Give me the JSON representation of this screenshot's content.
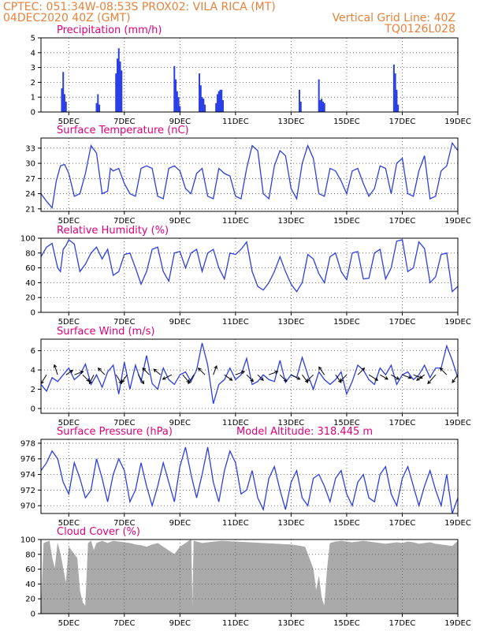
{
  "header": {
    "line1_left": "CPTEC:   051:34W-08:53S   PROX02: VILA RICA (MT)",
    "line2_left": "04DEC2020 40Z (GMT)",
    "line2_right": "Vertical Grid Line: 40Z",
    "line3_right": "TQ0126L028"
  },
  "x_ticks": [
    "5DEC",
    "7DEC",
    "9DEC",
    "11DEC",
    "13DEC",
    "15DEC",
    "17DEC",
    "19DEC"
  ],
  "x_range": [
    4,
    19
  ],
  "colors": {
    "header": "#e8823a",
    "title": "#e0007a",
    "line": "#2b3fe6",
    "cloud": "#aaaaaa",
    "arrow": "#000000"
  },
  "chart_data": [
    {
      "id": "precip",
      "type": "bar",
      "title": "Precipitation (mm/h)",
      "ylim": [
        0,
        5
      ],
      "yticks": [
        0,
        1,
        2,
        3,
        4,
        5
      ],
      "x": [
        4.75,
        4.8,
        4.85,
        4.9,
        6.0,
        6.05,
        6.1,
        6.7,
        6.75,
        6.8,
        6.85,
        6.9,
        8.8,
        8.85,
        8.9,
        8.95,
        9.0,
        9.7,
        9.75,
        9.8,
        9.85,
        9.9,
        10.3,
        10.35,
        10.4,
        10.45,
        10.5,
        10.55,
        13.3,
        13.35,
        14.0,
        14.05,
        14.1,
        14.15,
        14.2,
        16.7,
        16.75,
        16.8,
        16.85
      ],
      "values": [
        1.6,
        2.7,
        1.2,
        0.7,
        0.6,
        1.2,
        0.5,
        2.6,
        3.6,
        4.3,
        3.4,
        2.8,
        3.1,
        2.2,
        1.4,
        1.0,
        0.4,
        2.6,
        1.8,
        1.0,
        0.9,
        0.5,
        0.6,
        1.2,
        1.4,
        1.5,
        1.5,
        0.8,
        1.5,
        0.7,
        2.2,
        0.8,
        0.9,
        0.7,
        0.6,
        3.2,
        2.6,
        1.5,
        0.5
      ]
    },
    {
      "id": "temp",
      "type": "line",
      "title": "Surface Temperature (nC)",
      "ylim": [
        20.5,
        35
      ],
      "yticks": [
        21,
        24,
        27,
        30,
        33
      ],
      "x": [
        4.0,
        4.2,
        4.4,
        4.55,
        4.7,
        4.85,
        5.0,
        5.2,
        5.4,
        5.6,
        5.8,
        6.0,
        6.2,
        6.4,
        6.5,
        6.6,
        6.8,
        7.0,
        7.2,
        7.4,
        7.6,
        7.8,
        8.0,
        8.2,
        8.4,
        8.6,
        8.8,
        9.0,
        9.2,
        9.4,
        9.6,
        9.8,
        10.0,
        10.2,
        10.4,
        10.6,
        10.8,
        11.0,
        11.2,
        11.4,
        11.6,
        11.8,
        12.0,
        12.2,
        12.4,
        12.6,
        12.8,
        13.0,
        13.2,
        13.4,
        13.6,
        13.8,
        14.0,
        14.2,
        14.4,
        14.6,
        14.8,
        15.0,
        15.2,
        15.4,
        15.6,
        15.8,
        16.0,
        16.2,
        16.4,
        16.6,
        16.8,
        17.0,
        17.2,
        17.4,
        17.6,
        17.8,
        18.0,
        18.2,
        18.4,
        18.6,
        18.8,
        19.0
      ],
      "values": [
        24.0,
        22.5,
        21.2,
        26.5,
        29.5,
        29.8,
        28.0,
        23.5,
        24.0,
        28.0,
        33.5,
        32.0,
        24.0,
        24.5,
        29.0,
        28.5,
        29.0,
        26.0,
        24.0,
        23.5,
        29.0,
        29.5,
        29.0,
        23.5,
        23.0,
        29.0,
        29.5,
        28.5,
        25.0,
        24.0,
        28.0,
        29.0,
        23.5,
        23.0,
        29.0,
        28.0,
        27.5,
        23.5,
        23.0,
        29.0,
        33.5,
        32.5,
        24.0,
        23.0,
        29.5,
        32.5,
        31.5,
        25.0,
        23.0,
        30.0,
        33.5,
        31.0,
        24.0,
        23.5,
        29.0,
        28.5,
        26.5,
        24.0,
        28.5,
        29.0,
        26.0,
        23.5,
        25.0,
        29.5,
        29.0,
        24.0,
        30.0,
        31.0,
        24.0,
        23.5,
        28.5,
        31.5,
        23.0,
        23.5,
        28.5,
        29.5,
        34.0,
        32.5
      ]
    },
    {
      "id": "rh",
      "type": "line",
      "title": "Relative Humidity (%)",
      "ylim": [
        0,
        100
      ],
      "yticks": [
        0,
        20,
        40,
        60,
        80,
        100
      ],
      "x": [
        4.0,
        4.2,
        4.4,
        4.6,
        4.7,
        4.8,
        4.9,
        5.0,
        5.2,
        5.4,
        5.6,
        5.8,
        6.0,
        6.2,
        6.4,
        6.6,
        6.8,
        7.0,
        7.2,
        7.4,
        7.6,
        7.8,
        8.0,
        8.2,
        8.4,
        8.6,
        8.8,
        9.0,
        9.2,
        9.4,
        9.6,
        9.8,
        10.0,
        10.2,
        10.4,
        10.6,
        10.8,
        11.0,
        11.2,
        11.4,
        11.6,
        11.8,
        12.0,
        12.2,
        12.4,
        12.6,
        12.8,
        13.0,
        13.2,
        13.4,
        13.6,
        13.8,
        14.0,
        14.2,
        14.4,
        14.6,
        14.8,
        15.0,
        15.2,
        15.4,
        15.6,
        15.8,
        16.0,
        16.2,
        16.4,
        16.6,
        16.8,
        17.0,
        17.2,
        17.4,
        17.6,
        17.8,
        18.0,
        18.2,
        18.4,
        18.6,
        18.8,
        19.0
      ],
      "values": [
        75,
        88,
        93,
        60,
        55,
        85,
        90,
        98,
        92,
        55,
        65,
        80,
        88,
        72,
        85,
        50,
        55,
        78,
        80,
        60,
        38,
        55,
        85,
        88,
        55,
        42,
        80,
        82,
        60,
        80,
        85,
        55,
        80,
        85,
        60,
        45,
        80,
        78,
        85,
        95,
        55,
        35,
        30,
        40,
        55,
        75,
        55,
        38,
        28,
        40,
        78,
        72,
        52,
        40,
        75,
        80,
        55,
        44,
        80,
        82,
        45,
        46,
        80,
        85,
        45,
        60,
        96,
        98,
        55,
        60,
        95,
        86,
        40,
        48,
        78,
        80,
        28,
        35
      ]
    },
    {
      "id": "wind",
      "type": "line",
      "title": "Surface Wind (m/s)",
      "ylim": [
        -0.5,
        7.2
      ],
      "yticks": [
        0,
        2,
        4,
        6
      ],
      "x": [
        4.0,
        4.2,
        4.4,
        4.6,
        4.8,
        5.0,
        5.2,
        5.4,
        5.6,
        5.8,
        6.0,
        6.2,
        6.4,
        6.6,
        6.8,
        7.0,
        7.2,
        7.4,
        7.6,
        7.8,
        8.0,
        8.2,
        8.4,
        8.6,
        8.8,
        9.0,
        9.2,
        9.4,
        9.6,
        9.8,
        10.0,
        10.2,
        10.4,
        10.6,
        10.8,
        11.0,
        11.2,
        11.4,
        11.6,
        11.8,
        12.0,
        12.2,
        12.4,
        12.6,
        12.8,
        13.0,
        13.2,
        13.4,
        13.6,
        13.8,
        14.0,
        14.2,
        14.4,
        14.6,
        14.8,
        15.0,
        15.2,
        15.4,
        15.6,
        15.8,
        16.0,
        16.2,
        16.4,
        16.6,
        16.8,
        17.0,
        17.2,
        17.4,
        17.6,
        17.8,
        18.0,
        18.2,
        18.4,
        18.6,
        18.8,
        19.0
      ],
      "values": [
        2.5,
        1.8,
        3.2,
        2.8,
        3.5,
        4.2,
        3.0,
        3.5,
        4.6,
        2.5,
        3.5,
        2.2,
        3.8,
        4.5,
        1.5,
        4.8,
        2.0,
        4.5,
        2.8,
        5.5,
        2.6,
        2.0,
        4.2,
        3.0,
        2.5,
        3.5,
        3.8,
        2.8,
        4.0,
        6.8,
        4.5,
        0.5,
        2.5,
        3.0,
        4.2,
        3.0,
        3.5,
        5.2,
        2.5,
        2.8,
        3.5,
        3.0,
        2.8,
        5.0,
        2.7,
        3.5,
        3.2,
        5.3,
        3.5,
        2.0,
        3.8,
        3.0,
        2.5,
        3.0,
        3.8,
        1.5,
        2.8,
        4.5,
        4.0,
        3.0,
        2.5,
        4.2,
        3.5,
        4.5,
        2.5,
        3.5,
        3.8,
        3.0,
        3.5,
        4.5,
        3.2,
        4.2,
        4.2,
        6.5,
        5.0,
        3.2
      ],
      "arrows": {
        "x": [
          4.2,
          4.6,
          4.9,
          5.2,
          5.5,
          5.9,
          6.3,
          6.7,
          7.1,
          7.5,
          7.9,
          8.3,
          8.7,
          9.1,
          9.5,
          9.9,
          10.2,
          10.6,
          11.0,
          11.4,
          11.8,
          12.2,
          12.6,
          13.0,
          13.4,
          13.8,
          14.2,
          14.6,
          15.0,
          15.4,
          15.8,
          16.2,
          16.6,
          17.0,
          17.4,
          17.8,
          18.2,
          18.6,
          19.0
        ],
        "u": [
          -0.5,
          -0.3,
          0.6,
          0.8,
          0.6,
          -0.4,
          -0.6,
          0.5,
          -0.5,
          0.5,
          -0.6,
          -0.6,
          -0.8,
          0.6,
          -0.5,
          -0.6,
          0.3,
          0.7,
          0.8,
          0.6,
          0.5,
          0.8,
          0.6,
          0.8,
          0.5,
          -0.6,
          -0.5,
          0.5,
          -0.6,
          0.6,
          0.8,
          0.7,
          0.7,
          0.8,
          0.8,
          -0.7,
          -0.7,
          -0.6,
          -0.5
        ],
        "v": [
          -0.8,
          0.9,
          0.4,
          0.3,
          -0.6,
          -0.8,
          0.6,
          -0.8,
          -0.7,
          -0.8,
          0.6,
          0.5,
          -0.4,
          -0.7,
          -0.8,
          0.6,
          0.8,
          -0.5,
          0.3,
          -0.6,
          -0.5,
          0.3,
          -0.6,
          -0.4,
          -0.7,
          -0.6,
          0.7,
          -0.7,
          -0.6,
          0.6,
          -0.5,
          -0.4,
          -0.4,
          -0.3,
          -0.3,
          -0.5,
          -0.8,
          0.6,
          -0.7
        ]
      }
    },
    {
      "id": "pressure",
      "type": "line",
      "title": "Surface Pressure (hPa)",
      "subtitle": "Model Altitude: 318.445 m",
      "ylim": [
        969,
        978.5
      ],
      "yticks": [
        970,
        972,
        974,
        976,
        978
      ],
      "x": [
        4.0,
        4.2,
        4.4,
        4.6,
        4.8,
        5.0,
        5.2,
        5.4,
        5.6,
        5.8,
        6.0,
        6.2,
        6.4,
        6.6,
        6.8,
        7.0,
        7.2,
        7.4,
        7.6,
        7.8,
        8.0,
        8.2,
        8.4,
        8.6,
        8.8,
        9.0,
        9.2,
        9.4,
        9.6,
        9.8,
        10.0,
        10.2,
        10.4,
        10.6,
        10.8,
        11.0,
        11.2,
        11.4,
        11.6,
        11.8,
        12.0,
        12.2,
        12.4,
        12.6,
        12.8,
        13.0,
        13.2,
        13.4,
        13.6,
        13.8,
        14.0,
        14.2,
        14.4,
        14.6,
        14.8,
        15.0,
        15.2,
        15.4,
        15.6,
        15.8,
        16.0,
        16.2,
        16.4,
        16.6,
        16.8,
        17.0,
        17.2,
        17.4,
        17.6,
        17.8,
        18.0,
        18.2,
        18.4,
        18.6,
        18.8,
        19.0
      ],
      "values": [
        974.5,
        975.5,
        977.0,
        976.0,
        973.0,
        971.5,
        975.5,
        973.5,
        971.0,
        972.0,
        976.0,
        973.5,
        970.5,
        974.0,
        976.0,
        974.5,
        970.5,
        972.0,
        975.5,
        972.5,
        970.0,
        972.5,
        975.5,
        973.0,
        970.5,
        975.0,
        977.5,
        974.0,
        971.0,
        974.0,
        977.5,
        973.0,
        970.5,
        974.5,
        977.0,
        975.5,
        971.5,
        972.0,
        974.5,
        971.0,
        969.5,
        973.5,
        975.0,
        972.0,
        969.5,
        973.0,
        974.5,
        971.0,
        970.0,
        973.5,
        974.0,
        972.5,
        970.5,
        973.5,
        974.5,
        971.5,
        970.0,
        973.0,
        974.0,
        971.0,
        970.5,
        974.0,
        975.0,
        971.5,
        970.0,
        973.5,
        975.0,
        972.5,
        970.0,
        972.5,
        974.5,
        972.0,
        970.0,
        974.0,
        969.0,
        971.0
      ]
    },
    {
      "id": "cloud",
      "type": "area",
      "title": "Cloud Cover (%)",
      "ylim": [
        0,
        100
      ],
      "yticks": [
        0,
        20,
        40,
        60,
        80,
        100
      ],
      "x": [
        4.0,
        4.1,
        4.3,
        4.4,
        4.5,
        4.6,
        4.7,
        4.8,
        4.9,
        5.0,
        5.2,
        5.3,
        5.4,
        5.5,
        5.6,
        5.7,
        5.8,
        5.9,
        6.0,
        6.2,
        6.4,
        6.6,
        6.8,
        7.0,
        7.2,
        7.4,
        7.6,
        7.8,
        8.0,
        8.2,
        8.4,
        8.6,
        8.8,
        9.0,
        9.2,
        9.4,
        9.45,
        9.5,
        9.6,
        9.8,
        10.0,
        10.5,
        11.0,
        11.5,
        12.0,
        12.5,
        13.0,
        13.2,
        13.5,
        13.8,
        13.9,
        14.0,
        14.1,
        14.2,
        14.3,
        14.4,
        14.6,
        14.8,
        15.0,
        15.2,
        15.4,
        15.6,
        15.8,
        16.0,
        16.2,
        16.4,
        16.6,
        16.8,
        17.0,
        17.2,
        17.4,
        17.6,
        17.8,
        18.0,
        18.2,
        18.4,
        18.6,
        18.8,
        19.0
      ],
      "values": [
        0,
        95,
        98,
        75,
        60,
        95,
        80,
        60,
        40,
        90,
        80,
        75,
        30,
        15,
        10,
        95,
        98,
        85,
        95,
        98,
        95,
        98,
        97,
        96,
        95,
        93,
        92,
        90,
        93,
        95,
        90,
        85,
        80,
        90,
        95,
        100,
        0,
        98,
        97,
        95,
        96,
        98,
        97,
        96,
        95,
        94,
        93,
        92,
        90,
        60,
        30,
        50,
        20,
        10,
        60,
        95,
        97,
        98,
        97,
        96,
        97,
        98,
        97,
        96,
        95,
        94,
        95,
        96,
        95,
        97,
        96,
        94,
        95,
        96,
        94,
        93,
        92,
        91,
        98
      ]
    }
  ]
}
